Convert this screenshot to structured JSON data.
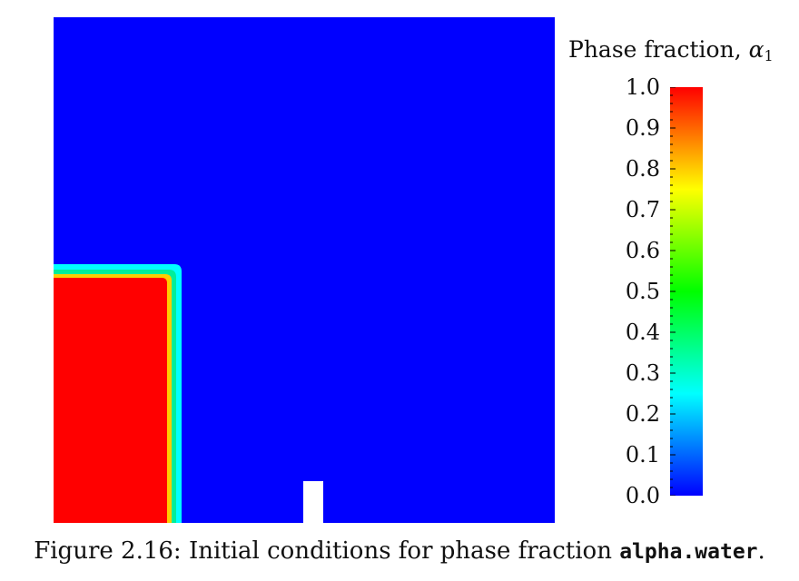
{
  "colorbar": {
    "title_text": "Phase fraction, ",
    "title_symbol": "α",
    "title_subscript": "1",
    "ticks": [
      "0.0",
      "0.1",
      "0.2",
      "0.3",
      "0.4",
      "0.5",
      "0.6",
      "0.7",
      "0.8",
      "0.9",
      "1.0"
    ],
    "colormap": [
      "#0000ff",
      "#00ffff",
      "#00ff00",
      "#ffff00",
      "#ff0000"
    ]
  },
  "field": {
    "background_color": "#0000ff",
    "water_color": "#ff0000",
    "interface_colors": [
      "#00ffff",
      "#00ff88"
    ],
    "obstacle_color": "#ffffff"
  },
  "caption": {
    "prefix": "Figure 2.16: Initial conditions for phase fraction ",
    "code": "alpha.water",
    "suffix": "."
  }
}
